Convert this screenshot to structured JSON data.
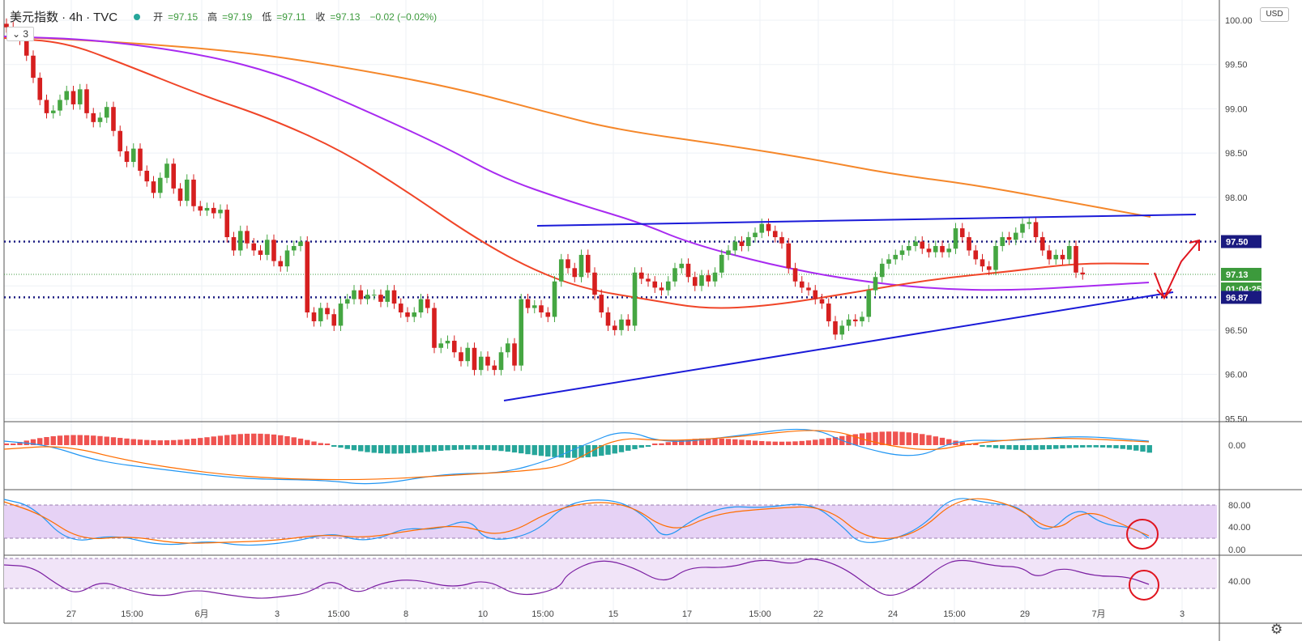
{
  "header": {
    "symbol": "美元指数 · 4h · TVC",
    "open_label": "开",
    "open": "=97.15",
    "high_label": "高",
    "high": "=97.19",
    "low_label": "低",
    "low": "=97.11",
    "close_label": "收",
    "close": "=97.13",
    "change": "−0.02 (−0.02%)"
  },
  "collapse_label": "3",
  "currency_label": "USD",
  "chart_data": {
    "type": "candlestick",
    "y_axis": {
      "ticks": [
        "100.00",
        "99.50",
        "99.00",
        "98.50",
        "98.00",
        "97.50",
        "97.00",
        "96.50",
        "96.00",
        "95.50"
      ],
      "ylim": [
        95.5,
        100.0
      ]
    },
    "x_axis": {
      "ticks": [
        "27",
        "15:00",
        "6月",
        "3",
        "15:00",
        "8",
        "10",
        "15:00",
        "15",
        "17",
        "15:00",
        "22",
        "24",
        "15:00",
        "29",
        "7月",
        "3"
      ]
    },
    "price_labels": [
      {
        "label": "97.50",
        "value": 97.5,
        "color": "#1a1a80"
      },
      {
        "label": "97.13",
        "value": 97.13,
        "color": "#3c9a3c"
      },
      {
        "label": "01:04:25",
        "value": 97.03,
        "color": "#3c9a3c"
      },
      {
        "label": "96.87",
        "value": 96.87,
        "color": "#1a1a80"
      }
    ],
    "horizontal_levels": [
      97.5,
      96.87
    ],
    "current_price": 97.13,
    "candles_close": [
      99.92,
      99.85,
      99.78,
      99.6,
      99.35,
      99.1,
      98.95,
      98.98,
      99.1,
      99.2,
      99.05,
      99.22,
      98.95,
      98.85,
      98.9,
      99.02,
      98.75,
      98.52,
      98.4,
      98.55,
      98.3,
      98.18,
      98.05,
      98.22,
      98.38,
      98.1,
      97.96,
      98.2,
      97.9,
      97.85,
      97.88,
      97.82,
      97.86,
      97.55,
      97.4,
      97.62,
      97.48,
      97.4,
      97.35,
      97.52,
      97.28,
      97.22,
      97.4,
      97.45,
      97.5,
      96.7,
      96.6,
      96.75,
      96.68,
      96.55,
      96.8,
      96.85,
      96.95,
      96.85,
      96.9,
      96.9,
      96.82,
      96.95,
      96.8,
      96.7,
      96.65,
      96.7,
      96.85,
      96.75,
      96.3,
      96.35,
      96.38,
      96.25,
      96.15,
      96.3,
      96.05,
      96.2,
      96.1,
      96.05,
      96.25,
      96.35,
      96.1,
      96.85,
      96.75,
      96.78,
      96.7,
      96.65,
      97.05,
      97.3,
      97.2,
      97.1,
      97.35,
      97.15,
      96.9,
      96.7,
      96.55,
      96.5,
      96.62,
      96.55,
      97.15,
      97.08,
      97.05,
      96.98,
      96.95,
      97.05,
      97.2,
      97.25,
      97.1,
      97.0,
      97.12,
      97.05,
      97.15,
      97.35,
      97.4,
      97.5,
      97.45,
      97.55,
      97.6,
      97.7,
      97.62,
      97.55,
      97.48,
      97.2,
      97.05,
      96.98,
      96.95,
      96.85,
      96.8,
      96.6,
      96.45,
      96.55,
      96.62,
      96.6,
      96.65,
      96.95,
      97.1,
      97.25,
      97.3,
      97.35,
      97.4,
      97.45,
      97.5,
      97.42,
      97.38,
      97.45,
      97.38,
      97.42,
      97.65,
      97.55,
      97.4,
      97.3,
      97.22,
      97.18,
      97.45,
      97.55,
      97.52,
      97.6,
      97.7,
      97.72,
      97.55,
      97.4,
      97.3,
      97.35,
      97.3,
      97.45,
      97.15,
      97.13
    ],
    "series": [
      {
        "name": "MA-red",
        "color": "#f04528"
      },
      {
        "name": "MA-purple",
        "color": "#a82af0"
      },
      {
        "name": "MA-orange",
        "color": "#f5872a"
      }
    ],
    "trendlines": [
      {
        "from": [
          "2020-06-11 12:00",
          95.72
        ],
        "to": [
          "2020-07-02 16:00",
          96.92
        ],
        "color": "#1a1ad8"
      },
      {
        "from": [
          "2020-06-12 16:00",
          97.7
        ],
        "to": [
          "2020-07-03 04:00",
          97.8
        ],
        "color": "#1a1ad8"
      }
    ],
    "macd": {
      "zero_label": "0.00"
    },
    "stoch": {
      "labels": [
        "80.00",
        "40.00",
        "0.00"
      ],
      "upper": 80,
      "lower": 20
    },
    "rsi": {
      "labels": [
        "40.00"
      ],
      "upper": 70,
      "lower": 30
    }
  }
}
